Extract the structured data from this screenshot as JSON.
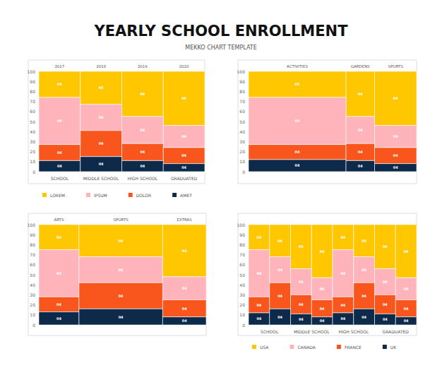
{
  "title": "YEARLY SCHOOL ENROLLMENT",
  "subtitle": "MEKKO CHART TEMPLATE",
  "chart_data": [
    {
      "type": "mekko",
      "stacked": true,
      "grid": false,
      "legend": "bottom left",
      "column_titles": [
        "2017",
        "2018",
        "2019",
        "2020"
      ],
      "categories": [
        "SCHOOL",
        "MIDDLE SCHOOL",
        "HIGH SCHOOL",
        "GRADUATED"
      ],
      "widths": [
        25,
        25,
        25,
        25
      ],
      "ylim": [
        0,
        100
      ],
      "yticks": [
        0,
        10,
        20,
        30,
        40,
        50,
        60,
        70,
        80,
        90,
        100
      ],
      "series": [
        {
          "name": "LOREM",
          "color": "#FFC700",
          "values": [
            26,
            33,
            45,
            54
          ],
          "segment_labels": [
            "04",
            "04",
            "04",
            "04"
          ]
        },
        {
          "name": "IPSUM",
          "color": "#FFB4BC",
          "values": [
            47,
            26,
            27,
            22
          ],
          "segment_labels": [
            "04",
            "04",
            "04",
            "04"
          ]
        },
        {
          "name": "DOLOR",
          "color": "#F9561D",
          "values": [
            16,
            26,
            17,
            16
          ],
          "segment_labels": [
            "04",
            "04",
            "04",
            "04"
          ]
        },
        {
          "name": "AMET",
          "color": "#0D2A4B",
          "values": [
            11,
            15,
            11,
            8
          ],
          "segment_labels": [
            "04",
            "04",
            "04",
            "04"
          ]
        }
      ]
    },
    {
      "type": "mekko",
      "stacked": true,
      "grid": false,
      "column_titles": [
        "ACTIVITIES",
        "GARDENS",
        "SPORTS"
      ],
      "widths": [
        58,
        17,
        25
      ],
      "ylim": [
        0,
        100
      ],
      "yticks": [
        0,
        10,
        20,
        30,
        40,
        50,
        60,
        70,
        80,
        90,
        100
      ],
      "series": [
        {
          "color": "#FFC700",
          "values": [
            26,
            45,
            54
          ],
          "segment_labels": [
            "04",
            "04",
            "04"
          ]
        },
        {
          "color": "#FFB4BC",
          "values": [
            47,
            27,
            22
          ],
          "segment_labels": [
            "04",
            "04",
            "04"
          ]
        },
        {
          "color": "#F9561D",
          "values": [
            15,
            17,
            16
          ],
          "segment_labels": [
            "04",
            "04",
            "04"
          ]
        },
        {
          "color": "#0D2A4B",
          "values": [
            12,
            11,
            8
          ],
          "segment_labels": [
            "04",
            "04",
            "04"
          ]
        }
      ]
    },
    {
      "type": "mekko",
      "stacked": true,
      "grid": false,
      "column_titles": [
        "ARTS",
        "SPORTS",
        "EXTRAS"
      ],
      "widths": [
        24,
        50,
        26
      ],
      "ylim": [
        0,
        100
      ],
      "yticks": [
        0,
        10,
        20,
        30,
        40,
        50,
        60,
        70,
        80,
        90,
        100
      ],
      "series": [
        {
          "color": "#FFC700",
          "values": [
            25,
            32,
            52
          ],
          "segment_labels": [
            "04",
            "04",
            "04"
          ]
        },
        {
          "color": "#FFB4BC",
          "values": [
            47,
            26,
            23
          ],
          "segment_labels": [
            "04",
            "04",
            "04"
          ]
        },
        {
          "color": "#F9561D",
          "values": [
            15,
            26,
            17
          ],
          "segment_labels": [
            "04",
            "04",
            "04"
          ]
        },
        {
          "color": "#0D2A4B",
          "values": [
            13,
            16,
            8
          ],
          "segment_labels": [
            "04",
            "04",
            "04"
          ]
        }
      ]
    },
    {
      "type": "mekko",
      "stacked": true,
      "grid": false,
      "legend": "bottom left",
      "categories": [
        "SCHOOL",
        "SCHOOL",
        "MIDDLE SCHOOL",
        "MIDDLE SCHOOL",
        "HIGH SCHOOL",
        "HIGH SCHOOL",
        "GRADUATED",
        "GRADUATED"
      ],
      "widths": [
        12.5,
        12.5,
        12.5,
        12.5,
        12.5,
        12.5,
        12.5,
        12.5
      ],
      "ylim": [
        0,
        100
      ],
      "yticks": [
        0,
        10,
        20,
        30,
        40,
        50,
        60,
        70,
        80,
        90,
        100
      ],
      "series": [
        {
          "name": "USA",
          "color": "#FFC700",
          "values": [
            25,
            32,
            44,
            53,
            25,
            32,
            44,
            53
          ],
          "segment_labels": [
            "04",
            "04",
            "04",
            "04",
            "04",
            "04",
            "04",
            "04"
          ]
        },
        {
          "name": "CANADA",
          "color": "#FFB4BC",
          "values": [
            47,
            26,
            26,
            22,
            47,
            26,
            26,
            22
          ],
          "segment_labels": [
            "04",
            "04",
            "04",
            "04",
            "04",
            "04",
            "04",
            "04"
          ]
        },
        {
          "name": "FRANCE",
          "color": "#F9561D",
          "values": [
            16,
            26,
            19,
            17,
            16,
            26,
            19,
            17
          ],
          "segment_labels": [
            "04",
            "04",
            "04",
            "04",
            "04",
            "04",
            "04",
            "04"
          ]
        },
        {
          "name": "UK",
          "color": "#0D2A4B",
          "values": [
            12,
            16,
            11,
            8,
            12,
            16,
            11,
            8
          ],
          "segment_labels": [
            "04",
            "04",
            "04",
            "04",
            "04",
            "04",
            "04",
            "04"
          ]
        }
      ]
    }
  ]
}
